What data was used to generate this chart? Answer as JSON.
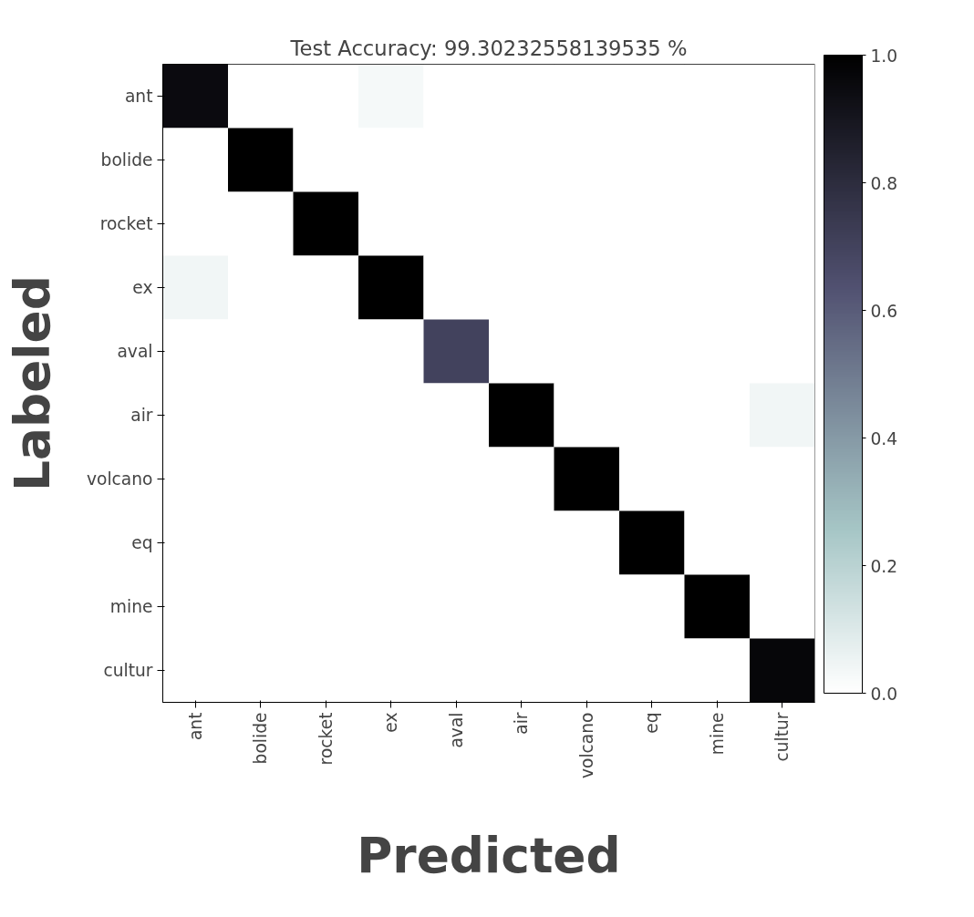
{
  "chart_data": {
    "type": "heatmap",
    "title": "Test Accuracy: 99.30232558139535 %",
    "xlabel": "Predicted",
    "ylabel": "Labeled",
    "categories": [
      "ant",
      "bolide",
      "rocket",
      "ex",
      "aval",
      "air",
      "volcano",
      "eq",
      "mine",
      "cultur"
    ],
    "y_categories": [
      "ant",
      "bolide",
      "rocket",
      "ex",
      "aval",
      "air",
      "volcano",
      "eq",
      "mine",
      "cultur"
    ],
    "cells": [
      [
        0.95,
        0,
        0,
        0.03,
        0,
        0,
        0,
        0,
        0,
        0
      ],
      [
        0,
        1,
        0,
        0,
        0,
        0,
        0,
        0,
        0,
        0
      ],
      [
        0,
        0,
        1,
        0,
        0,
        0,
        0,
        0,
        0,
        0
      ],
      [
        0.04,
        0,
        0,
        1,
        0,
        0,
        0,
        0,
        0,
        0
      ],
      [
        0,
        0,
        0,
        0,
        0.7,
        0,
        0,
        0,
        0,
        0
      ],
      [
        0,
        0,
        0,
        0,
        0,
        1,
        0,
        0,
        0,
        0.04
      ],
      [
        0,
        0,
        0,
        0,
        0,
        0,
        1,
        0,
        0,
        0
      ],
      [
        0,
        0,
        0,
        0,
        0,
        0,
        0,
        1,
        0,
        0
      ],
      [
        0,
        0,
        0,
        0,
        0,
        0,
        0,
        0,
        1,
        0
      ],
      [
        0,
        0,
        0,
        0,
        0,
        0,
        0,
        0,
        0,
        0.97
      ]
    ],
    "clim": [
      0,
      1
    ],
    "cticks": [
      {
        "value": 0,
        "label": "0.0"
      },
      {
        "value": 0.2,
        "label": "0.2"
      },
      {
        "value": 0.4,
        "label": "0.4"
      },
      {
        "value": 0.6,
        "label": "0.6"
      },
      {
        "value": 0.8,
        "label": "0.8"
      },
      {
        "value": 1,
        "label": "1.0"
      }
    ]
  }
}
